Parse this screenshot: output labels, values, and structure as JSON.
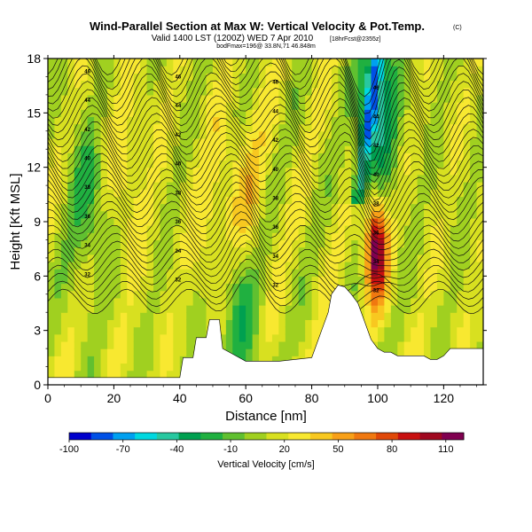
{
  "header": {
    "title": "Wind-Parallel Section at Max W: Vertical Velocity & Pot.Temp.",
    "copyright": "(C)",
    "valid_line": "Valid 1400 LST (1200Z) WED 7 Apr 2010",
    "forecast_tag": "[18hrFcst@2355z]",
    "info_line": "bodFmax=196@ 33.8N,71 46.848m"
  },
  "chart_data": {
    "type": "heatmap",
    "title": "Wind-Parallel Section at Max W: Vertical Velocity & Pot.Temp.",
    "xlabel": "Distance [nm]",
    "ylabel": "Height [Kft MSL]",
    "xlim": [
      0,
      132
    ],
    "ylim": [
      0,
      18
    ],
    "xticks": [
      0,
      20,
      40,
      60,
      80,
      100,
      120
    ],
    "yticks": [
      0,
      3,
      6,
      9,
      12,
      15,
      18
    ],
    "colorbar": {
      "label": "Vertical Velocity [cm/s]",
      "ticks": [
        -100,
        -70,
        -40,
        -10,
        20,
        50,
        80,
        110
      ],
      "range": [
        -100,
        120
      ],
      "colors": [
        "#0000cc",
        "#0050e6",
        "#00a0f0",
        "#00d8e0",
        "#28c8a0",
        "#00a050",
        "#20b040",
        "#60c030",
        "#a0d020",
        "#d8e020",
        "#f8e830",
        "#f8c820",
        "#f8a018",
        "#f07810",
        "#e04808",
        "#c81010",
        "#a00820",
        "#800050"
      ]
    },
    "terrain": {
      "x": [
        0,
        40,
        41,
        44,
        45,
        48,
        49,
        52,
        53,
        60,
        70,
        80,
        83,
        85,
        86,
        88,
        90,
        92,
        94,
        96,
        98,
        100,
        102,
        104,
        106,
        108,
        110,
        112,
        114,
        116,
        118,
        120,
        122,
        124,
        126,
        128,
        132
      ],
      "y": [
        0.4,
        0.4,
        1.5,
        1.5,
        2.6,
        2.6,
        3.6,
        3.6,
        2.0,
        1.3,
        1.3,
        1.5,
        3.0,
        4.0,
        5.0,
        5.5,
        5.4,
        5.0,
        4.5,
        3.5,
        2.5,
        2.0,
        1.8,
        1.8,
        1.6,
        1.6,
        1.6,
        1.6,
        1.6,
        1.4,
        1.4,
        1.6,
        2.0,
        2.0,
        2.0,
        2.0,
        2.0
      ]
    },
    "theta_contours": {
      "labels": [
        "32",
        "34",
        "36",
        "38",
        "40",
        "42",
        "44",
        "46"
      ]
    },
    "velocity_features": [
      {
        "x": 99.5,
        "y": 7.5,
        "value": 115
      },
      {
        "x": 100.0,
        "y": 15.5,
        "value": -45
      },
      {
        "x": 60.0,
        "y": 11.0,
        "value": 35
      },
      {
        "x": 24.0,
        "y": 12.0,
        "value": 30
      },
      {
        "x": 50.5,
        "y": 9.0,
        "value": 30
      },
      {
        "x": 12.0,
        "y": 10.0,
        "value": -15
      },
      {
        "x": 58.0,
        "y": 3.5,
        "value": -20
      }
    ]
  }
}
